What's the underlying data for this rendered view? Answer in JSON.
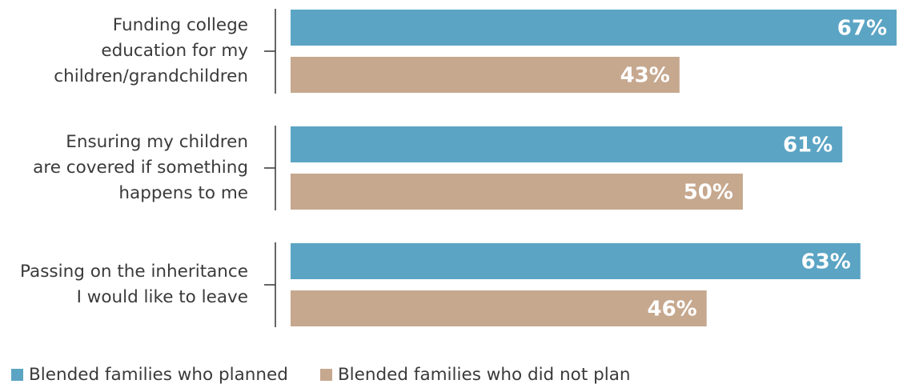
{
  "chart_data": {
    "type": "bar",
    "orientation": "horizontal",
    "categories": [
      [
        "Funding college",
        "education for my",
        "children/grandchildren"
      ],
      [
        "Ensuring my children",
        "are covered if something",
        "happens to me"
      ],
      [
        "Passing on the inheritance",
        "I would like to leave"
      ]
    ],
    "series": [
      {
        "name": "Blended families who planned",
        "values": [
          67,
          61,
          63
        ],
        "color": "#5ba4c4",
        "labels": [
          "67%",
          "61%",
          "63%"
        ]
      },
      {
        "name": "Blended families who did not plan",
        "values": [
          43,
          50,
          46
        ],
        "color": "#c6a88f",
        "labels": [
          "43%",
          "50%",
          "46%"
        ]
      }
    ],
    "xlim": [
      0,
      67
    ],
    "value_suffix": "%",
    "legend_position": "bottom-left",
    "grid": false
  }
}
